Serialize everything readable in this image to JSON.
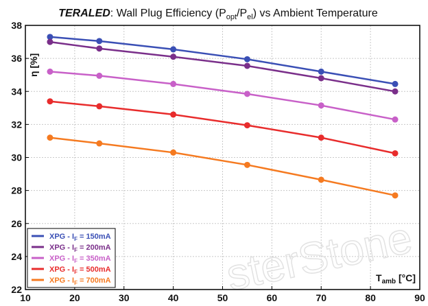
{
  "chart_data": {
    "type": "line",
    "title_bold": "TERALED",
    "title_rest": ": Wall Plug Efficiency (P",
    "title_sub1": "opt",
    "title_mid": "/P",
    "title_sub2": "el",
    "title_end": ") vs Ambient Temperature",
    "ylabel_main": "η",
    "ylabel_unit": "[%]",
    "xlabel_main": "T",
    "xlabel_sub": "amb",
    "xlabel_unit": " [°C]",
    "xlim": [
      10,
      90
    ],
    "ylim": [
      22,
      38
    ],
    "xticks": [
      10,
      20,
      30,
      40,
      50,
      60,
      70,
      80,
      90
    ],
    "yticks": [
      22,
      24,
      26,
      28,
      30,
      32,
      34,
      36,
      38
    ],
    "grid": true,
    "legend_position": "bottom-left",
    "x": [
      15,
      25,
      40,
      55,
      70,
      85
    ],
    "series": [
      {
        "name": "XPG  - I_F = 150mA",
        "legend_prefix": "XPG  - I",
        "legend_sub": "F",
        "legend_suffix": " = 150mA",
        "color": "#3a4fb5",
        "values": [
          37.3,
          37.05,
          36.55,
          35.95,
          35.2,
          34.45
        ]
      },
      {
        "name": "XPG  - I_F = 200mA",
        "legend_prefix": "XPG  - I",
        "legend_sub": "F",
        "legend_suffix": " = 200mA",
        "color": "#7a2f8a",
        "values": [
          37.0,
          36.6,
          36.1,
          35.55,
          34.8,
          34.0
        ]
      },
      {
        "name": "XPG  - I_F = 350mA",
        "legend_prefix": "XPG  - I",
        "legend_sub": "F",
        "legend_suffix": " = 350mA",
        "color": "#c860c8",
        "values": [
          35.2,
          34.95,
          34.45,
          33.85,
          33.15,
          32.3
        ]
      },
      {
        "name": "XPG  - I_F = 500mA",
        "legend_prefix": "XPG  - I",
        "legend_sub": "F",
        "legend_suffix": " = 500mA",
        "color": "#e82c2c",
        "values": [
          33.4,
          33.1,
          32.6,
          31.95,
          31.2,
          30.25
        ]
      },
      {
        "name": "XPG  - I_F = 700mA",
        "legend_prefix": "XPG  - I",
        "legend_sub": "F",
        "legend_suffix": " = 700mA",
        "color": "#f57a20",
        "values": [
          31.2,
          30.85,
          30.3,
          29.55,
          28.65,
          27.7
        ]
      }
    ],
    "watermark": "sterStone"
  }
}
